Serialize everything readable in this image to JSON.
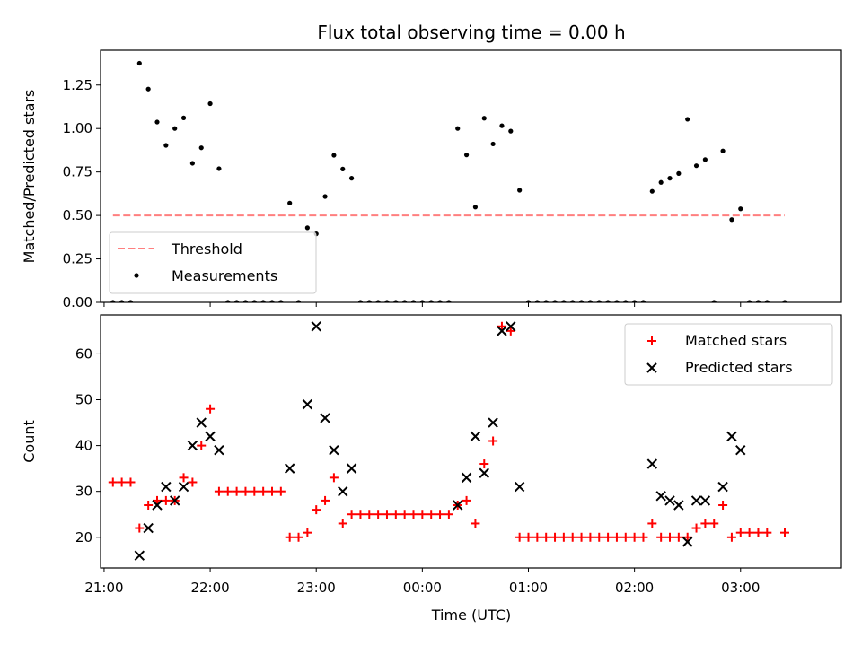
{
  "title": "Flux total observing time = 0.00 h",
  "colors": {
    "threshold": "#ff7f7f",
    "measurements": "#000000",
    "matched": "#ff0000",
    "predicted": "#000000"
  },
  "xaxis": {
    "label": "Time (UTC)",
    "ticks": [
      "21:00",
      "22:00",
      "23:00",
      "00:00",
      "01:00",
      "02:00",
      "03:00"
    ],
    "range": [
      "20:58",
      "03:57"
    ]
  },
  "chart_data": [
    {
      "type": "scatter",
      "ylabel": "Matched/Predicted stars",
      "ylim": [
        0,
        1.45
      ],
      "yticks": [
        "0.00",
        "0.25",
        "0.50",
        "0.75",
        "1.00",
        "1.25"
      ],
      "grid": false,
      "legend": {
        "placement": "lower-left",
        "entries": [
          "Threshold",
          "Measurements"
        ]
      },
      "threshold": {
        "name": "Threshold",
        "y": 0.5,
        "x": [
          "21:05",
          "03:25"
        ]
      },
      "series": [
        {
          "name": "Measurements",
          "points": [
            [
              "21:05",
              0
            ],
            [
              "21:10",
              0
            ],
            [
              "21:15",
              0
            ],
            [
              "21:20",
              1.375
            ],
            [
              "21:25",
              1.227
            ],
            [
              "21:30",
              1.037
            ],
            [
              "21:35",
              0.903
            ],
            [
              "21:40",
              1.0
            ],
            [
              "21:45",
              1.061
            ],
            [
              "21:50",
              0.8
            ],
            [
              "21:55",
              0.889
            ],
            [
              "22:00",
              1.143
            ],
            [
              "22:05",
              0.769
            ],
            [
              "22:10",
              0
            ],
            [
              "22:15",
              0
            ],
            [
              "22:20",
              0
            ],
            [
              "22:25",
              0
            ],
            [
              "22:30",
              0
            ],
            [
              "22:35",
              0
            ],
            [
              "22:40",
              0
            ],
            [
              "22:45",
              0.571
            ],
            [
              "22:50",
              0
            ],
            [
              "22:55",
              0.429
            ],
            [
              "23:00",
              0.394
            ],
            [
              "23:05",
              0.609
            ],
            [
              "23:10",
              0.846
            ],
            [
              "23:15",
              0.767
            ],
            [
              "23:20",
              0.714
            ],
            [
              "23:25",
              0
            ],
            [
              "23:30",
              0
            ],
            [
              "23:35",
              0
            ],
            [
              "23:40",
              0
            ],
            [
              "23:45",
              0
            ],
            [
              "23:50",
              0
            ],
            [
              "23:55",
              0
            ],
            [
              "00:00",
              0
            ],
            [
              "00:05",
              0
            ],
            [
              "00:10",
              0
            ],
            [
              "00:15",
              0
            ],
            [
              "00:20",
              1.0
            ],
            [
              "00:25",
              0.848
            ],
            [
              "00:30",
              0.548
            ],
            [
              "00:35",
              1.059
            ],
            [
              "00:40",
              0.911
            ],
            [
              "00:45",
              1.016
            ],
            [
              "00:50",
              0.985
            ],
            [
              "00:55",
              0.645
            ],
            [
              "01:00",
              0
            ],
            [
              "01:05",
              0
            ],
            [
              "01:10",
              0
            ],
            [
              "01:15",
              0
            ],
            [
              "01:20",
              0
            ],
            [
              "01:25",
              0
            ],
            [
              "01:30",
              0
            ],
            [
              "01:35",
              0
            ],
            [
              "01:40",
              0
            ],
            [
              "01:45",
              0
            ],
            [
              "01:50",
              0
            ],
            [
              "01:55",
              0
            ],
            [
              "02:00",
              0
            ],
            [
              "02:05",
              0
            ],
            [
              "02:10",
              0.639
            ],
            [
              "02:15",
              0.69
            ],
            [
              "02:20",
              0.714
            ],
            [
              "02:25",
              0.741
            ],
            [
              "02:30",
              1.053
            ],
            [
              "02:35",
              0.786
            ],
            [
              "02:40",
              0.821
            ],
            [
              "02:45",
              0
            ],
            [
              "02:50",
              0.871
            ],
            [
              "02:55",
              0.476
            ],
            [
              "03:00",
              0.538
            ],
            [
              "03:05",
              0
            ],
            [
              "03:10",
              0
            ],
            [
              "03:15",
              0
            ],
            [
              "03:25",
              0
            ]
          ]
        }
      ]
    },
    {
      "type": "scatter",
      "ylabel": "Count",
      "ylim": [
        13.3,
        68.5
      ],
      "yticks": [
        "20",
        "30",
        "40",
        "50",
        "60"
      ],
      "grid": false,
      "legend": {
        "placement": "top-right",
        "entries": [
          "Matched stars",
          "Predicted stars"
        ]
      },
      "series": [
        {
          "name": "Matched stars",
          "points": [
            [
              "21:05",
              32
            ],
            [
              "21:10",
              32
            ],
            [
              "21:15",
              32
            ],
            [
              "21:20",
              22
            ],
            [
              "21:25",
              27
            ],
            [
              "21:30",
              28
            ],
            [
              "21:35",
              28
            ],
            [
              "21:40",
              28
            ],
            [
              "21:45",
              33
            ],
            [
              "21:50",
              32
            ],
            [
              "21:55",
              40
            ],
            [
              "22:00",
              48
            ],
            [
              "22:05",
              30
            ],
            [
              "22:10",
              30
            ],
            [
              "22:15",
              30
            ],
            [
              "22:20",
              30
            ],
            [
              "22:25",
              30
            ],
            [
              "22:30",
              30
            ],
            [
              "22:35",
              30
            ],
            [
              "22:40",
              30
            ],
            [
              "22:45",
              20
            ],
            [
              "22:50",
              20
            ],
            [
              "22:55",
              21
            ],
            [
              "23:00",
              26
            ],
            [
              "23:05",
              28
            ],
            [
              "23:10",
              33
            ],
            [
              "23:15",
              23
            ],
            [
              "23:20",
              25
            ],
            [
              "23:25",
              25
            ],
            [
              "23:30",
              25
            ],
            [
              "23:35",
              25
            ],
            [
              "23:40",
              25
            ],
            [
              "23:45",
              25
            ],
            [
              "23:50",
              25
            ],
            [
              "23:55",
              25
            ],
            [
              "00:00",
              25
            ],
            [
              "00:05",
              25
            ],
            [
              "00:10",
              25
            ],
            [
              "00:15",
              25
            ],
            [
              "00:20",
              27
            ],
            [
              "00:25",
              28
            ],
            [
              "00:30",
              23
            ],
            [
              "00:35",
              36
            ],
            [
              "00:40",
              41
            ],
            [
              "00:45",
              66
            ],
            [
              "00:50",
              65
            ],
            [
              "00:55",
              20
            ],
            [
              "01:00",
              20
            ],
            [
              "01:05",
              20
            ],
            [
              "01:10",
              20
            ],
            [
              "01:15",
              20
            ],
            [
              "01:20",
              20
            ],
            [
              "01:25",
              20
            ],
            [
              "01:30",
              20
            ],
            [
              "01:35",
              20
            ],
            [
              "01:40",
              20
            ],
            [
              "01:45",
              20
            ],
            [
              "01:50",
              20
            ],
            [
              "01:55",
              20
            ],
            [
              "02:00",
              20
            ],
            [
              "02:05",
              20
            ],
            [
              "02:10",
              23
            ],
            [
              "02:15",
              20
            ],
            [
              "02:20",
              20
            ],
            [
              "02:25",
              20
            ],
            [
              "02:30",
              20
            ],
            [
              "02:35",
              22
            ],
            [
              "02:40",
              23
            ],
            [
              "02:45",
              23
            ],
            [
              "02:50",
              27
            ],
            [
              "02:55",
              20
            ],
            [
              "03:00",
              21
            ],
            [
              "03:05",
              21
            ],
            [
              "03:10",
              21
            ],
            [
              "03:15",
              21
            ],
            [
              "03:25",
              21
            ]
          ]
        },
        {
          "name": "Predicted stars",
          "points": [
            [
              "21:20",
              16
            ],
            [
              "21:25",
              22
            ],
            [
              "21:30",
              27
            ],
            [
              "21:35",
              31
            ],
            [
              "21:40",
              28
            ],
            [
              "21:45",
              31
            ],
            [
              "21:50",
              40
            ],
            [
              "21:55",
              45
            ],
            [
              "22:00",
              42
            ],
            [
              "22:05",
              39
            ],
            [
              "22:45",
              35
            ],
            [
              "22:55",
              49
            ],
            [
              "23:00",
              66
            ],
            [
              "23:05",
              46
            ],
            [
              "23:10",
              39
            ],
            [
              "23:15",
              30
            ],
            [
              "23:20",
              35
            ],
            [
              "00:20",
              27
            ],
            [
              "00:25",
              33
            ],
            [
              "00:30",
              42
            ],
            [
              "00:35",
              34
            ],
            [
              "00:40",
              45
            ],
            [
              "00:45",
              65
            ],
            [
              "00:50",
              66
            ],
            [
              "00:55",
              31
            ],
            [
              "02:10",
              36
            ],
            [
              "02:15",
              29
            ],
            [
              "02:20",
              28
            ],
            [
              "02:25",
              27
            ],
            [
              "02:30",
              19
            ],
            [
              "02:35",
              28
            ],
            [
              "02:40",
              28
            ],
            [
              "02:50",
              31
            ],
            [
              "02:55",
              42
            ],
            [
              "03:00",
              39
            ]
          ]
        }
      ]
    }
  ]
}
